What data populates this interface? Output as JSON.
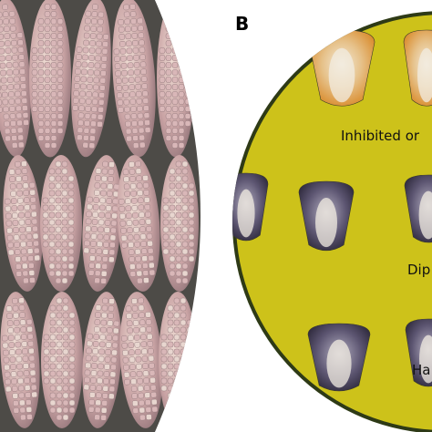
{
  "panel_label": "B",
  "captions": [
    "Inhibited or",
    "Dip",
    "Ha"
  ]
}
